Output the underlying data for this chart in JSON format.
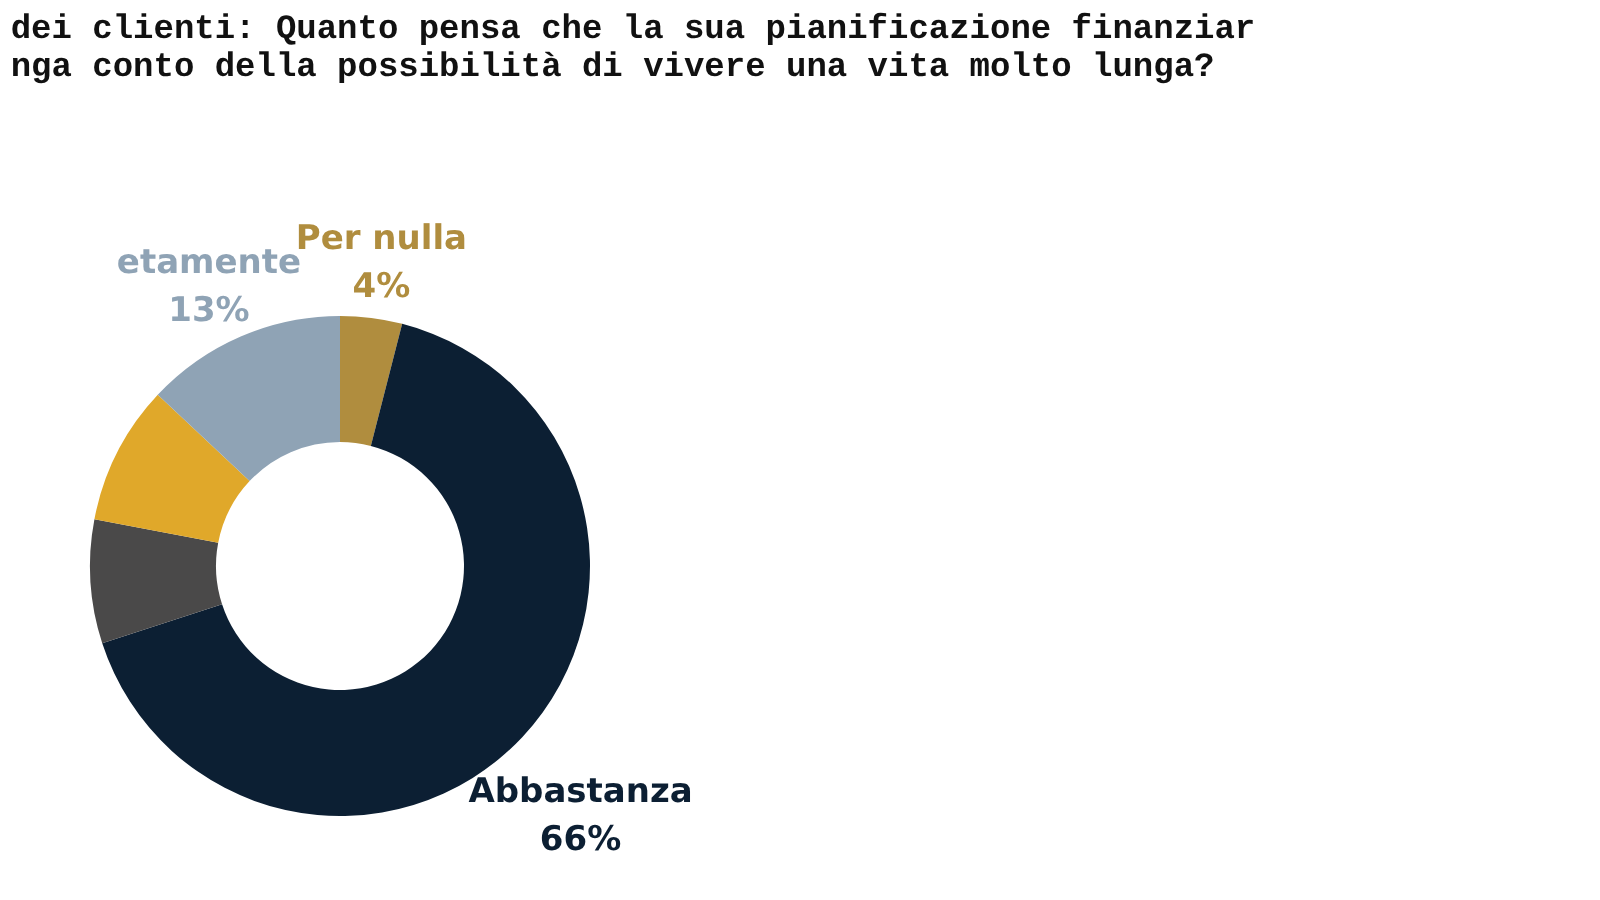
{
  "chart_data": {
    "type": "donut",
    "title": "dei clienti: Quanto pensa che la sua pianificazione finanziar\nnga conto della possibilità di vivere una vita molto lunga?",
    "categories": [
      "Per nulla",
      "Abbastanza",
      null,
      null,
      "etamente"
    ],
    "values": [
      4,
      66,
      8,
      9,
      13
    ],
    "colors": [
      "#b08d3e",
      "#0c1f33",
      "#4a4949",
      "#e0a82a",
      "#8fa3b5"
    ],
    "value_labels": [
      "4%",
      "66%",
      null,
      null,
      "13%"
    ],
    "legend": false
  }
}
